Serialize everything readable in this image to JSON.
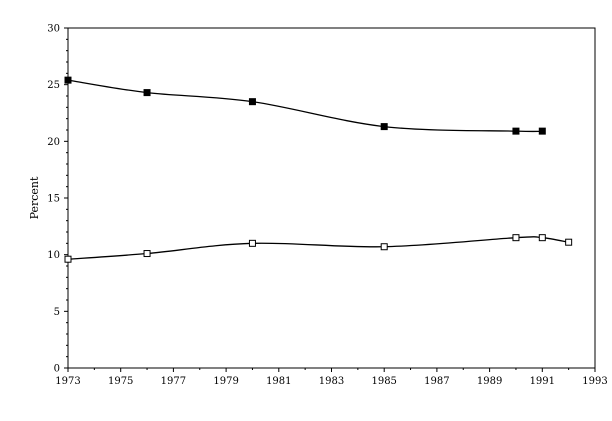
{
  "chart_data": {
    "type": "line",
    "title": "",
    "xlabel": "",
    "ylabel": "Percent",
    "xlim": [
      1973,
      1993
    ],
    "ylim": [
      0,
      30
    ],
    "x_ticks": [
      1973,
      1975,
      1977,
      1979,
      1981,
      1983,
      1985,
      1987,
      1989,
      1991,
      1993
    ],
    "y_ticks": [
      0,
      5,
      10,
      15,
      20,
      25,
      30
    ],
    "grid": false,
    "legend": "none",
    "series": [
      {
        "marker": "filled-square",
        "color": "#000000",
        "x": [
          1973,
          1976,
          1980,
          1985,
          1990,
          1991
        ],
        "y": [
          25.4,
          24.3,
          23.5,
          21.3,
          20.9,
          20.9
        ]
      },
      {
        "marker": "open-square",
        "color": "#000000",
        "x": [
          1973,
          1976,
          1980,
          1985,
          1990,
          1991,
          1992
        ],
        "y": [
          9.6,
          10.1,
          11.0,
          10.7,
          11.5,
          11.5,
          11.1
        ]
      }
    ]
  }
}
